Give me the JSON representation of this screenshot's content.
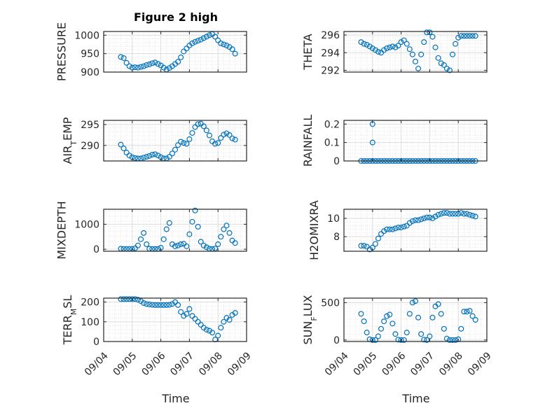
{
  "chart_data": {
    "title": "Figure 2 high",
    "xlabel": "Time",
    "x_ticks": [
      "09/04",
      "09/05",
      "09/06",
      "09/07",
      "09/08",
      "09/09"
    ],
    "marker": "open-circle",
    "marker_color": "#0072BD",
    "grid": "major-minor-dotted",
    "panels": [
      {
        "type": "scatter",
        "name": "PRESSURE",
        "ylabel": "PRESSURE",
        "ylim": [
          900,
          1010
        ],
        "yticks": [
          900,
          950,
          1000
        ],
        "x": [
          0.6,
          0.7,
          0.8,
          0.9,
          1.0,
          1.1,
          1.2,
          1.3,
          1.4,
          1.5,
          1.6,
          1.7,
          1.8,
          1.9,
          2.0,
          2.1,
          2.2,
          2.3,
          2.4,
          2.5,
          2.6,
          2.7,
          2.8,
          2.9,
          3.0,
          3.1,
          3.2,
          3.3,
          3.4,
          3.5,
          3.6,
          3.7,
          3.8,
          3.9,
          4.0,
          4.1,
          4.2,
          4.3,
          4.4,
          4.5,
          4.6
        ],
        "y": [
          941,
          938,
          925,
          916,
          912,
          913,
          912,
          914,
          916,
          919,
          921,
          924,
          926,
          922,
          918,
          912,
          907,
          911,
          916,
          922,
          928,
          940,
          956,
          964,
          972,
          978,
          982,
          985,
          988,
          992,
          996,
          1000,
          1003,
          996,
          986,
          978,
          975,
          972,
          968,
          962,
          950
        ]
      },
      {
        "type": "scatter",
        "name": "THETA",
        "ylabel": "THETA",
        "ylim": [
          291.8,
          296.4
        ],
        "yticks": [
          292,
          294,
          296
        ],
        "x": [
          0.6,
          0.7,
          0.8,
          0.9,
          1.0,
          1.1,
          1.2,
          1.3,
          1.4,
          1.5,
          1.6,
          1.7,
          1.8,
          1.9,
          2.0,
          2.1,
          2.2,
          2.3,
          2.4,
          2.5,
          2.6,
          2.7,
          2.8,
          2.9,
          3.0,
          3.1,
          3.2,
          3.3,
          3.4,
          3.5,
          3.6,
          3.7,
          3.8,
          3.9,
          4.0,
          4.1,
          4.2,
          4.3,
          4.4,
          4.5,
          4.6
        ],
        "y": [
          295.2,
          295.0,
          294.9,
          294.7,
          294.5,
          294.3,
          294.1,
          294.0,
          294.3,
          294.5,
          294.6,
          294.7,
          294.6,
          294.8,
          295.2,
          295.4,
          295.0,
          294.4,
          293.8,
          293.0,
          292.2,
          293.8,
          295.2,
          296.3,
          296.3,
          295.8,
          294.6,
          293.4,
          292.8,
          292.6,
          292.2,
          292.0,
          293.8,
          295.0,
          295.7,
          295.9,
          295.9,
          295.9,
          295.9,
          295.9,
          295.9
        ]
      },
      {
        "type": "scatter",
        "name": "AIR_TEMP",
        "ylabel": "AIR_TEMP",
        "ylim": [
          286.3,
          296
        ],
        "yticks": [
          290,
          295
        ],
        "x": [
          0.6,
          0.7,
          0.8,
          0.9,
          1.0,
          1.1,
          1.2,
          1.3,
          1.4,
          1.5,
          1.6,
          1.7,
          1.8,
          1.9,
          2.0,
          2.1,
          2.2,
          2.3,
          2.4,
          2.5,
          2.6,
          2.7,
          2.8,
          2.9,
          3.0,
          3.1,
          3.2,
          3.3,
          3.4,
          3.5,
          3.6,
          3.7,
          3.8,
          3.9,
          4.0,
          4.1,
          4.2,
          4.3,
          4.4,
          4.5,
          4.6
        ],
        "y": [
          290.2,
          289.3,
          288.3,
          287.6,
          287.2,
          287.0,
          286.9,
          286.9,
          287.1,
          287.3,
          287.5,
          287.8,
          287.9,
          287.6,
          287.2,
          286.9,
          286.9,
          287.3,
          288.1,
          289.0,
          290.1,
          290.9,
          290.6,
          290.4,
          291.5,
          293.0,
          294.4,
          295.1,
          295.2,
          294.6,
          293.6,
          292.4,
          291.0,
          290.4,
          290.6,
          291.8,
          292.6,
          292.9,
          292.5,
          291.7,
          291.4
        ]
      },
      {
        "type": "scatter",
        "name": "RAINFALL",
        "ylabel": "RAINFALL",
        "ylim": [
          0,
          0.22
        ],
        "yticks": [
          0,
          0.1,
          0.2
        ],
        "x": [
          0.6,
          0.7,
          0.8,
          0.9,
          1.0,
          1.1,
          1.2,
          1.3,
          1.4,
          1.5,
          1.6,
          1.7,
          1.8,
          1.9,
          2.0,
          2.1,
          2.2,
          2.3,
          2.4,
          2.5,
          2.6,
          2.7,
          2.8,
          2.9,
          3.0,
          3.1,
          3.2,
          3.3,
          3.4,
          3.5,
          3.6,
          3.7,
          3.8,
          3.9,
          4.0,
          4.1,
          4.2,
          4.3,
          4.4,
          4.5,
          4.6,
          1.0,
          1.0
        ],
        "y": [
          0,
          0,
          0,
          0,
          0,
          0,
          0,
          0,
          0,
          0,
          0,
          0,
          0,
          0,
          0,
          0,
          0,
          0,
          0,
          0,
          0,
          0,
          0,
          0,
          0,
          0,
          0,
          0,
          0,
          0,
          0,
          0,
          0,
          0,
          0,
          0,
          0,
          0,
          0,
          0,
          0,
          0.2,
          0.1
        ]
      },
      {
        "type": "scatter",
        "name": "MIXDEPTH",
        "ylabel": "MIXDEPTH",
        "ylim": [
          -80,
          1600
        ],
        "yticks": [
          0,
          1000
        ],
        "x": [
          0.6,
          0.7,
          0.8,
          0.9,
          1.0,
          1.1,
          1.2,
          1.3,
          1.4,
          1.5,
          1.6,
          1.7,
          1.8,
          1.9,
          2.0,
          2.1,
          2.2,
          2.3,
          2.4,
          2.5,
          2.6,
          2.7,
          2.8,
          2.9,
          3.0,
          3.1,
          3.2,
          3.3,
          3.4,
          3.5,
          3.6,
          3.7,
          3.8,
          3.9,
          4.0,
          4.1,
          4.2,
          4.3,
          4.4,
          4.5,
          4.6
        ],
        "y": [
          20,
          15,
          10,
          10,
          12,
          40,
          150,
          400,
          650,
          200,
          20,
          10,
          10,
          10,
          60,
          400,
          800,
          1050,
          200,
          120,
          150,
          200,
          220,
          120,
          600,
          1100,
          1550,
          900,
          300,
          150,
          80,
          20,
          10,
          30,
          200,
          500,
          800,
          950,
          650,
          350,
          250
        ]
      },
      {
        "type": "scatter",
        "name": "H2OMIXRA",
        "ylabel": "H2OMIXRA",
        "ylim": [
          6.4,
          11
        ],
        "yticks": [
          8,
          10
        ],
        "x": [
          0.6,
          0.7,
          0.8,
          0.9,
          1.0,
          1.1,
          1.2,
          1.3,
          1.4,
          1.5,
          1.6,
          1.7,
          1.8,
          1.9,
          2.0,
          2.1,
          2.2,
          2.3,
          2.4,
          2.5,
          2.6,
          2.7,
          2.8,
          2.9,
          3.0,
          3.1,
          3.2,
          3.3,
          3.4,
          3.5,
          3.6,
          3.7,
          3.8,
          3.9,
          4.0,
          4.1,
          4.2,
          4.3,
          4.4,
          4.5,
          4.6
        ],
        "y": [
          7.0,
          7.0,
          6.9,
          6.6,
          6.8,
          7.2,
          7.8,
          8.3,
          8.6,
          8.8,
          8.8,
          8.8,
          8.9,
          9.0,
          9.0,
          9.1,
          9.2,
          9.5,
          9.7,
          9.8,
          9.8,
          9.9,
          10.0,
          10.1,
          10.1,
          10.0,
          10.2,
          10.4,
          10.5,
          10.6,
          10.6,
          10.5,
          10.5,
          10.5,
          10.5,
          10.6,
          10.5,
          10.5,
          10.4,
          10.3,
          10.2
        ]
      },
      {
        "type": "scatter",
        "name": "TERR_MSL",
        "ylabel": "TERR_MSL",
        "ylim": [
          0,
          220
        ],
        "yticks": [
          0,
          100,
          200
        ],
        "x": [
          0.6,
          0.7,
          0.8,
          0.9,
          1.0,
          1.1,
          1.2,
          1.3,
          1.4,
          1.5,
          1.6,
          1.7,
          1.8,
          1.9,
          2.0,
          2.1,
          2.2,
          2.3,
          2.4,
          2.5,
          2.6,
          2.7,
          2.8,
          2.9,
          3.0,
          3.1,
          3.2,
          3.3,
          3.4,
          3.5,
          3.6,
          3.7,
          3.8,
          3.9,
          4.0,
          4.1,
          4.2,
          4.3,
          4.4,
          4.5,
          4.6
        ],
        "y": [
          215,
          215,
          215,
          215,
          215,
          215,
          212,
          205,
          195,
          190,
          188,
          186,
          185,
          185,
          185,
          185,
          185,
          186,
          190,
          200,
          185,
          150,
          130,
          140,
          165,
          130,
          115,
          100,
          85,
          70,
          60,
          55,
          45,
          10,
          30,
          70,
          100,
          120,
          110,
          135,
          145
        ]
      },
      {
        "type": "scatter",
        "name": "SUN_FLUX",
        "ylabel": "SUN_FLUX",
        "ylim": [
          -20,
          560
        ],
        "yticks": [
          0,
          500
        ],
        "x": [
          0.6,
          0.7,
          0.8,
          0.9,
          1.0,
          1.1,
          1.2,
          1.3,
          1.4,
          1.5,
          1.6,
          1.7,
          1.8,
          1.9,
          2.0,
          2.1,
          2.2,
          2.3,
          2.4,
          2.5,
          2.6,
          2.7,
          2.8,
          2.9,
          3.0,
          3.1,
          3.2,
          3.3,
          3.4,
          3.5,
          3.6,
          3.7,
          3.8,
          3.9,
          4.0,
          4.1,
          4.2,
          4.3,
          4.4,
          4.5,
          4.6
        ],
        "y": [
          350,
          250,
          100,
          10,
          0,
          0,
          50,
          150,
          250,
          320,
          340,
          220,
          80,
          5,
          0,
          0,
          100,
          350,
          500,
          520,
          300,
          80,
          5,
          0,
          50,
          300,
          450,
          480,
          350,
          150,
          20,
          0,
          0,
          0,
          10,
          150,
          380,
          380,
          390,
          320,
          270
        ]
      }
    ]
  }
}
